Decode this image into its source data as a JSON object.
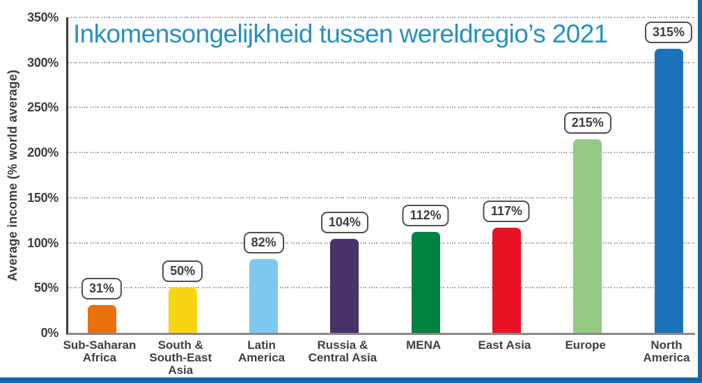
{
  "page": {
    "background": "#ffffff",
    "frame_strip_color": "#1468b1"
  },
  "chart_data": {
    "type": "bar",
    "title": "Inkomensongelijkheid tussen wereldregio’s 2021",
    "title_color": "#2690bc",
    "ylabel": "Average income (% world average)",
    "xlabel": "",
    "ylim": [
      0,
      350
    ],
    "ytick_step": 50,
    "ytick_labels": [
      "350%",
      "300%",
      "250%",
      "200%",
      "150%",
      "100%",
      "50%",
      "0%"
    ],
    "grid": "horizontal dotted",
    "legend_position": "none",
    "categories": [
      "Sub-Saharan\nAfrica",
      "South &\nSouth-East\nAsia",
      "Latin\nAmerica",
      "Russia &\nCentral Asia",
      "MENA",
      "East Asia",
      "Europe",
      "North\nAmerica"
    ],
    "values": [
      31,
      50,
      82,
      104,
      112,
      117,
      215,
      315
    ],
    "value_labels": [
      "31%",
      "50%",
      "82%",
      "104%",
      "112%",
      "117%",
      "215%",
      "315%"
    ],
    "bar_colors": [
      "#e8700f",
      "#f8d513",
      "#7ec8f0",
      "#483266",
      "#008240",
      "#e71324",
      "#95c984",
      "#1c72ba"
    ],
    "style": {
      "grid_color": "#9c9c9c",
      "y_axis_color": "#3a3a3a",
      "x_axis_color": "#8a8a8a",
      "tick_text_color": "#3d3d3d",
      "category_text_color": "#3f3f3f",
      "value_box_border_color": "#4f4f4f",
      "value_box_text_color": "#3d3d3d"
    }
  }
}
